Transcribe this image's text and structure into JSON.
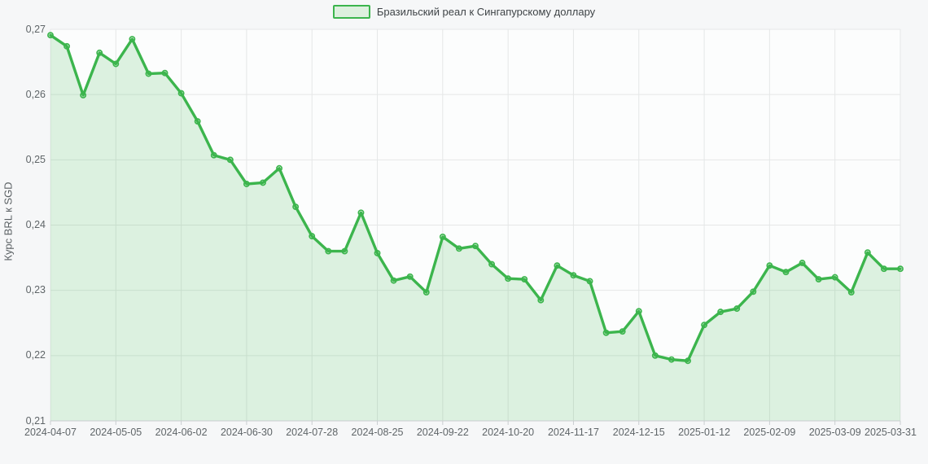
{
  "chart_data": {
    "type": "area",
    "series_name": "Бразильский реал к Сингапурскому доллару",
    "title": "",
    "xlabel": "",
    "ylabel": "Курс BRL к SGD",
    "grid": true,
    "legend_position": "top-center",
    "ylim": [
      0.21,
      0.27
    ],
    "x": [
      "2024-04-07",
      "2024-04-14",
      "2024-04-21",
      "2024-04-28",
      "2024-05-05",
      "2024-05-12",
      "2024-05-19",
      "2024-05-26",
      "2024-06-02",
      "2024-06-09",
      "2024-06-16",
      "2024-06-23",
      "2024-06-30",
      "2024-07-07",
      "2024-07-14",
      "2024-07-21",
      "2024-07-28",
      "2024-08-04",
      "2024-08-11",
      "2024-08-18",
      "2024-08-25",
      "2024-09-01",
      "2024-09-08",
      "2024-09-15",
      "2024-09-22",
      "2024-09-29",
      "2024-10-06",
      "2024-10-13",
      "2024-10-20",
      "2024-10-27",
      "2024-11-03",
      "2024-11-10",
      "2024-11-17",
      "2024-11-24",
      "2024-12-01",
      "2024-12-08",
      "2024-12-15",
      "2024-12-22",
      "2024-12-29",
      "2025-01-05",
      "2025-01-12",
      "2025-01-19",
      "2025-01-26",
      "2025-02-02",
      "2025-02-09",
      "2025-02-16",
      "2025-02-23",
      "2025-03-02",
      "2025-03-09",
      "2025-03-16",
      "2025-03-23",
      "2025-03-30",
      "2025-03-31"
    ],
    "values": [
      0.2691,
      0.2674,
      0.2599,
      0.2664,
      0.2647,
      0.2685,
      0.2632,
      0.2633,
      0.2602,
      0.2559,
      0.2507,
      0.25,
      0.2463,
      0.2465,
      0.2487,
      0.2428,
      0.2383,
      0.236,
      0.236,
      0.2419,
      0.2357,
      0.2315,
      0.2321,
      0.2297,
      0.2382,
      0.2364,
      0.2368,
      0.234,
      0.2318,
      0.2317,
      0.2285,
      0.2338,
      0.2323,
      0.2314,
      0.2235,
      0.2237,
      0.2268,
      0.22,
      0.2194,
      0.2192,
      0.2247,
      0.2267,
      0.2272,
      0.2298,
      0.2338,
      0.2328,
      0.2342,
      0.2317,
      0.232,
      0.2297,
      0.2358,
      0.2333,
      0.2333
    ],
    "x_tick_indices": [
      0,
      4,
      8,
      12,
      16,
      20,
      24,
      28,
      32,
      36,
      40,
      44,
      48,
      52
    ],
    "x_tick_labels": [
      "2024-04-07",
      "2024-05-05",
      "2024-06-02",
      "2024-06-30",
      "2024-07-28",
      "2024-08-25",
      "2024-09-22",
      "2024-10-20",
      "2024-11-17",
      "2024-12-15",
      "2025-01-12",
      "2025-02-09",
      "2025-03-09",
      "2025-03-31"
    ],
    "y_tick_values": [
      0.21,
      0.22,
      0.23,
      0.24,
      0.25,
      0.26,
      0.27
    ],
    "y_tick_labels": [
      "0,21",
      "0,22",
      "0,23",
      "0,24",
      "0,25",
      "0,26",
      "0,27"
    ],
    "colors": {
      "line": "#3cb54d",
      "fill": "rgba(59,181,74,0.16)",
      "grid": "#e5e7e7",
      "axis": "#c9cdd0",
      "plot_bg": "#fcfdfd",
      "text": "#5f6568",
      "page_bg": "#f6f7f8"
    }
  }
}
